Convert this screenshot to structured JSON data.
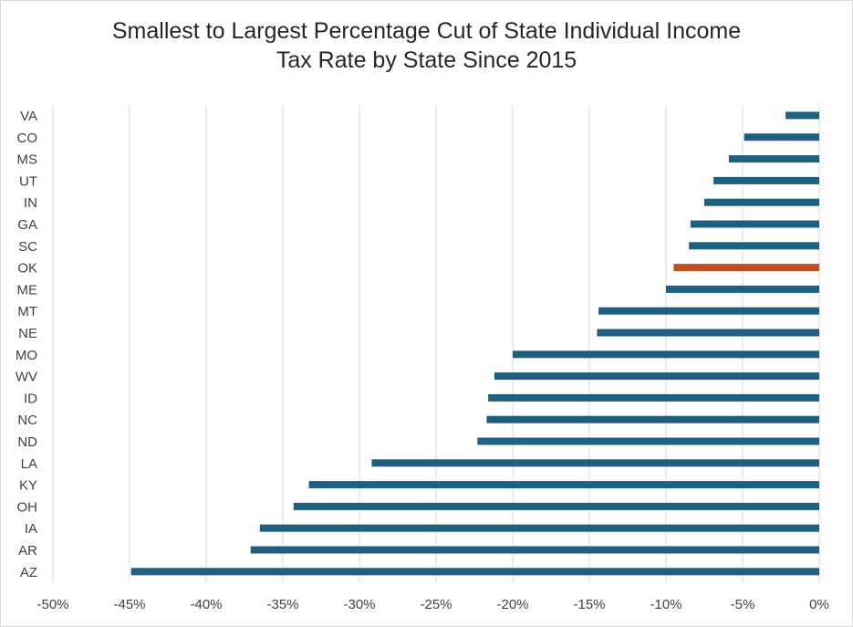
{
  "chart_data": {
    "type": "bar",
    "orientation": "horizontal",
    "title_lines": [
      "Smallest to Largest Percentage Cut of State Individual Income",
      "Tax Rate by State Since 2015"
    ],
    "categories": [
      "VA",
      "CO",
      "MS",
      "UT",
      "IN",
      "GA",
      "SC",
      "OK",
      "ME",
      "MT",
      "NE",
      "MO",
      "WV",
      "ID",
      "NC",
      "ND",
      "LA",
      "KY",
      "OH",
      "IA",
      "AR",
      "AZ"
    ],
    "values": [
      -2.2,
      -4.9,
      -5.9,
      -6.9,
      -7.5,
      -8.4,
      -8.5,
      -9.5,
      -10.0,
      -14.4,
      -14.5,
      -20.0,
      -21.2,
      -21.6,
      -21.7,
      -22.3,
      -29.2,
      -33.3,
      -34.3,
      -36.5,
      -37.1,
      -44.9
    ],
    "highlight": "OK",
    "bar_color": "#1f5f7f",
    "highlight_color": "#c0501f",
    "xlim": [
      -50,
      0
    ],
    "xticks": [
      -50,
      -45,
      -40,
      -35,
      -30,
      -25,
      -20,
      -15,
      -10,
      -5,
      0
    ],
    "xtick_labels": [
      "-50%",
      "-45%",
      "-40%",
      "-35%",
      "-30%",
      "-25%",
      "-20%",
      "-15%",
      "-10%",
      "-5%",
      "0%"
    ],
    "grid": "vertical",
    "legend": "none"
  }
}
